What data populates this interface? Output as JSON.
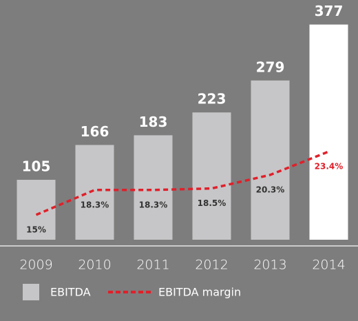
{
  "chart_data": {
    "type": "bar_line",
    "categories": [
      "2009",
      "2010",
      "2011",
      "2012",
      "2013",
      "2014"
    ],
    "series": [
      {
        "name": "EBITDA",
        "type": "bar",
        "color": "#c6c6c8",
        "colors": [
          "#c6c6c8",
          "#c6c6c8",
          "#c6c6c8",
          "#c6c6c8",
          "#c6c6c8",
          "#ffffff"
        ],
        "values": [
          105,
          166,
          183,
          223,
          279,
          377
        ]
      },
      {
        "name": "EBITDA margin",
        "type": "line",
        "axis": "y2",
        "color": "#e0202a",
        "label_colors": [
          "#333333",
          "#333333",
          "#333333",
          "#333333",
          "#333333",
          "#e0202a"
        ],
        "values": [
          15,
          18.3,
          18.3,
          18.5,
          20.3,
          23.4
        ],
        "value_labels": [
          "15%",
          "18.3%",
          "18.3%",
          "18.5%",
          "20.3%",
          "23.4%"
        ]
      }
    ],
    "ylim": [
      0,
      420
    ],
    "y2lim": [
      11.7,
      43.5
    ]
  }
}
